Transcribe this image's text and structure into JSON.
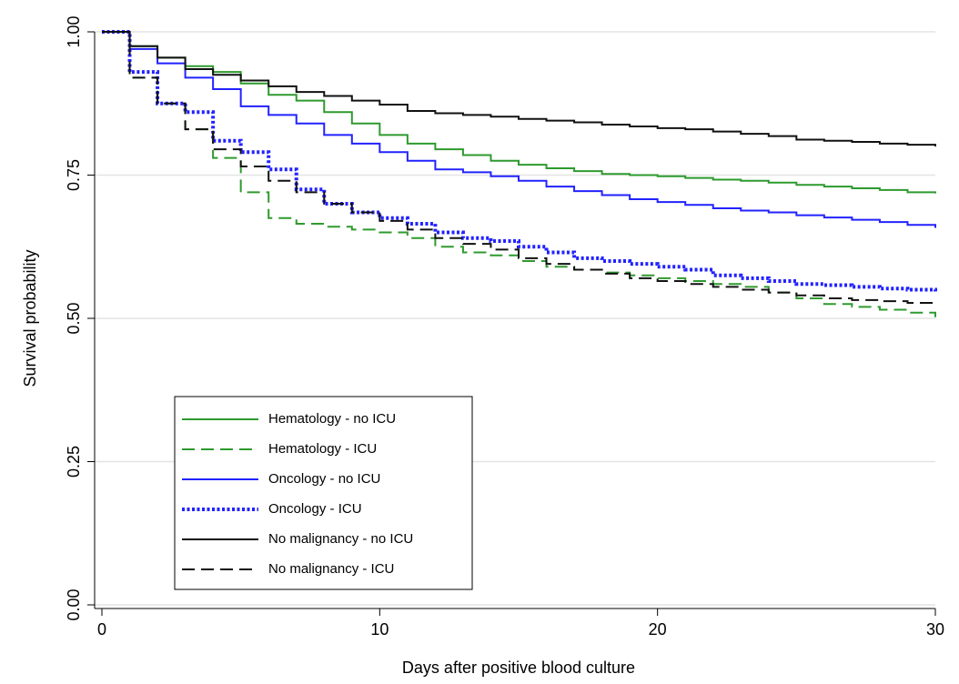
{
  "chart_data": {
    "type": "step",
    "x_label": "Days after positive blood culture",
    "y_label": "Survival probability",
    "x": [
      0,
      1,
      2,
      3,
      4,
      5,
      6,
      7,
      8,
      9,
      10,
      11,
      12,
      13,
      14,
      15,
      16,
      17,
      18,
      19,
      20,
      21,
      22,
      23,
      24,
      25,
      26,
      27,
      28,
      29,
      30
    ],
    "xlim": [
      0,
      30
    ],
    "xticks": [
      0,
      10,
      20,
      30
    ],
    "ylim": [
      0,
      1
    ],
    "yticks": [
      {
        "value": 0,
        "label": "0.00"
      },
      {
        "value": 0.25,
        "label": "0.25"
      },
      {
        "value": 0.5,
        "label": "0.50"
      },
      {
        "value": 0.75,
        "label": "0.75"
      },
      {
        "value": 1,
        "label": "1.00"
      }
    ],
    "grid": true,
    "legend_position": "lower left",
    "series": [
      {
        "name": "Hematology - no ICU",
        "color": "#2e9a2e",
        "dash": "solid",
        "values": [
          1,
          0.975,
          0.955,
          0.94,
          0.93,
          0.91,
          0.89,
          0.88,
          0.86,
          0.84,
          0.82,
          0.805,
          0.795,
          0.785,
          0.775,
          0.768,
          0.762,
          0.757,
          0.752,
          0.75,
          0.748,
          0.745,
          0.742,
          0.74,
          0.737,
          0.733,
          0.73,
          0.727,
          0.724,
          0.72,
          0.718
        ]
      },
      {
        "name": "Hematology - ICU",
        "color": "#2e9a2e",
        "dash": "dashed",
        "values": [
          1,
          0.92,
          0.875,
          0.83,
          0.78,
          0.72,
          0.675,
          0.665,
          0.66,
          0.655,
          0.65,
          0.64,
          0.625,
          0.615,
          0.61,
          0.6,
          0.59,
          0.585,
          0.58,
          0.575,
          0.57,
          0.565,
          0.56,
          0.555,
          0.545,
          0.535,
          0.525,
          0.52,
          0.515,
          0.51,
          0.502
        ]
      },
      {
        "name": "Oncology - no ICU",
        "color": "#2222ff",
        "dash": "solid",
        "values": [
          1,
          0.97,
          0.945,
          0.92,
          0.9,
          0.87,
          0.855,
          0.84,
          0.82,
          0.805,
          0.79,
          0.775,
          0.76,
          0.755,
          0.748,
          0.74,
          0.73,
          0.722,
          0.715,
          0.708,
          0.703,
          0.698,
          0.692,
          0.688,
          0.685,
          0.68,
          0.676,
          0.672,
          0.668,
          0.663,
          0.658
        ]
      },
      {
        "name": "Oncology - ICU",
        "color": "#2222ff",
        "dash": "dotted",
        "values": [
          1,
          0.93,
          0.875,
          0.86,
          0.81,
          0.79,
          0.76,
          0.725,
          0.7,
          0.685,
          0.675,
          0.665,
          0.65,
          0.64,
          0.635,
          0.625,
          0.615,
          0.605,
          0.6,
          0.595,
          0.59,
          0.585,
          0.575,
          0.57,
          0.565,
          0.56,
          0.558,
          0.555,
          0.552,
          0.55,
          0.547
        ]
      },
      {
        "name": "No malignancy - no ICU",
        "color": "#111111",
        "dash": "solid",
        "values": [
          1,
          0.975,
          0.955,
          0.935,
          0.925,
          0.915,
          0.905,
          0.895,
          0.888,
          0.88,
          0.873,
          0.862,
          0.858,
          0.855,
          0.852,
          0.848,
          0.845,
          0.842,
          0.838,
          0.835,
          0.832,
          0.83,
          0.826,
          0.822,
          0.818,
          0.812,
          0.81,
          0.808,
          0.805,
          0.803,
          0.8
        ]
      },
      {
        "name": "No malignancy - ICU",
        "color": "#111111",
        "dash": "dashed",
        "values": [
          1,
          0.92,
          0.875,
          0.83,
          0.795,
          0.765,
          0.74,
          0.72,
          0.7,
          0.685,
          0.67,
          0.655,
          0.64,
          0.63,
          0.62,
          0.605,
          0.595,
          0.585,
          0.578,
          0.57,
          0.565,
          0.56,
          0.555,
          0.55,
          0.545,
          0.54,
          0.535,
          0.532,
          0.53,
          0.527,
          0.525
        ]
      }
    ]
  }
}
